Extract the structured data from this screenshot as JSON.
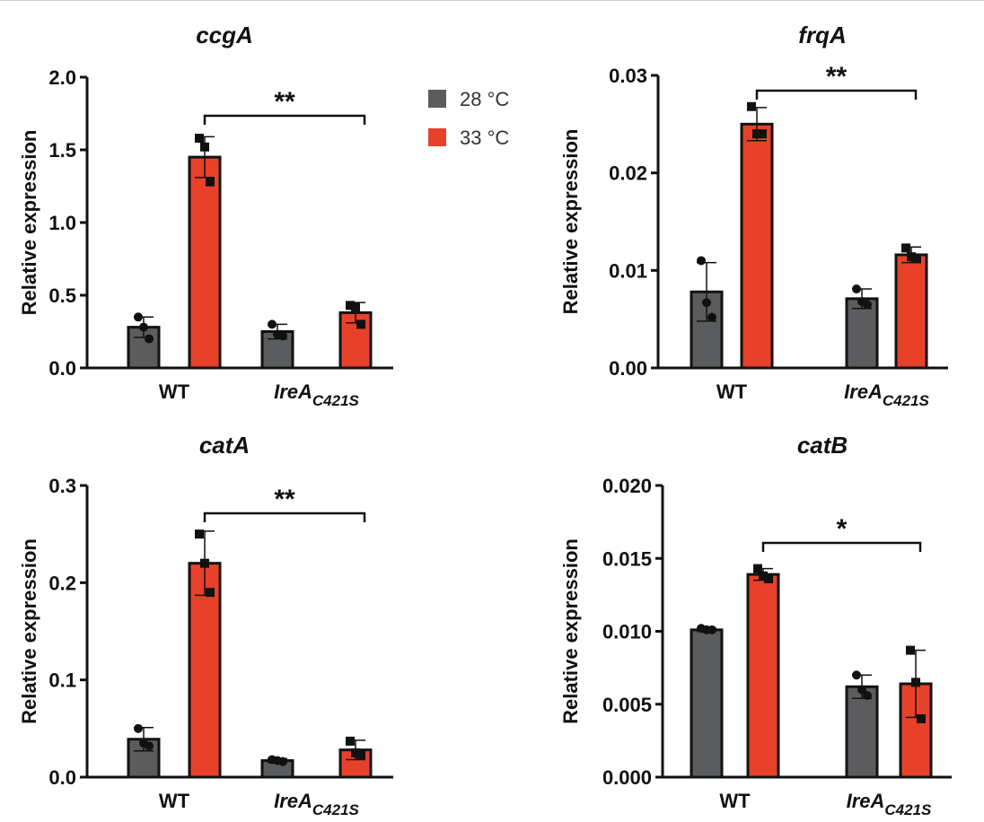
{
  "colors": {
    "28C": "#5b5c5e",
    "33C": "#e8412a",
    "stroke": "#111111"
  },
  "legend": {
    "items": [
      {
        "label": "28 °C",
        "color": "#5b5c5e"
      },
      {
        "label": "33 °C",
        "color": "#e8412a"
      }
    ]
  },
  "chart_data": [
    {
      "type": "bar",
      "title": "ccgA",
      "ylabel": "Relative expression",
      "xlabel": "",
      "ylim": [
        0,
        2.0
      ],
      "yticks": [
        "0.0",
        "0.5",
        "1.0",
        "1.5",
        "2.0"
      ],
      "ytick_values": [
        0,
        0.5,
        1.0,
        1.5,
        2.0
      ],
      "categories": [
        {
          "main": "WT",
          "sub": ""
        },
        {
          "main": "IreA",
          "sub": "C421S"
        }
      ],
      "series": [
        {
          "name": "28 °C",
          "values": [
            0.28,
            0.25
          ],
          "errors": [
            0.07,
            0.05
          ],
          "points": [
            [
              0.35,
              0.28,
              0.2
            ],
            [
              0.3,
              0.23,
              0.22
            ]
          ]
        },
        {
          "name": "33 °C",
          "values": [
            1.45,
            0.38
          ],
          "errors": [
            0.14,
            0.07
          ],
          "points": [
            [
              1.58,
              1.52,
              1.28
            ],
            [
              0.43,
              0.42,
              0.3
            ]
          ]
        }
      ],
      "significance": {
        "label": "**",
        "from": "WT 33 °C",
        "to": "IreA C421S 33 °C"
      }
    },
    {
      "type": "bar",
      "title": "frqA",
      "ylabel": "Relative expression",
      "xlabel": "",
      "ylim": [
        0,
        0.03
      ],
      "yticks": [
        "0.00",
        "0.01",
        "0.02",
        "0.03"
      ],
      "ytick_values": [
        0,
        0.01,
        0.02,
        0.03
      ],
      "categories": [
        {
          "main": "WT",
          "sub": ""
        },
        {
          "main": "IreA",
          "sub": "C421S"
        }
      ],
      "series": [
        {
          "name": "28 °C",
          "values": [
            0.0078,
            0.0071
          ],
          "errors": [
            0.003,
            0.001
          ],
          "points": [
            [
              0.011,
              0.0067,
              0.0052
            ],
            [
              0.0081,
              0.0068,
              0.0065
            ]
          ]
        },
        {
          "name": "33 °C",
          "values": [
            0.025,
            0.0116
          ],
          "errors": [
            0.0017,
            0.0008
          ],
          "points": [
            [
              0.0268,
              0.024,
              0.024
            ],
            [
              0.0123,
              0.0114,
              0.0112
            ]
          ]
        }
      ],
      "significance": {
        "label": "**",
        "from": "WT 33 °C",
        "to": "IreA C421S 33 °C"
      }
    },
    {
      "type": "bar",
      "title": "catA",
      "ylabel": "Relative expression",
      "xlabel": "",
      "ylim": [
        0,
        0.3
      ],
      "yticks": [
        "0.0",
        "0.1",
        "0.2",
        "0.3"
      ],
      "ytick_values": [
        0,
        0.1,
        0.2,
        0.3
      ],
      "categories": [
        {
          "main": "WT",
          "sub": ""
        },
        {
          "main": "IreA",
          "sub": "C421S"
        }
      ],
      "series": [
        {
          "name": "28 °C",
          "values": [
            0.039,
            0.017
          ],
          "errors": [
            0.012,
            0.002
          ],
          "points": [
            [
              0.05,
              0.035,
              0.032
            ],
            [
              0.018,
              0.017,
              0.016
            ]
          ]
        },
        {
          "name": "33 °C",
          "values": [
            0.22,
            0.028
          ],
          "errors": [
            0.033,
            0.01
          ],
          "points": [
            [
              0.25,
              0.22,
              0.19
            ],
            [
              0.037,
              0.025,
              0.023
            ]
          ]
        }
      ],
      "significance": {
        "label": "**",
        "from": "WT 33 °C",
        "to": "IreA C421S 33 °C"
      }
    },
    {
      "type": "bar",
      "title": "catB",
      "ylabel": "Relative expression",
      "xlabel": "",
      "ylim": [
        0,
        0.02
      ],
      "yticks": [
        "0.000",
        "0.005",
        "0.010",
        "0.015",
        "0.020"
      ],
      "ytick_values": [
        0,
        0.005,
        0.01,
        0.015,
        0.02
      ],
      "categories": [
        {
          "main": "WT",
          "sub": ""
        },
        {
          "main": "IreA",
          "sub": "C421S"
        }
      ],
      "series": [
        {
          "name": "28 °C",
          "values": [
            0.0101,
            0.0062
          ],
          "errors": [
            0.0001,
            0.0008
          ],
          "points": [
            [
              0.0102,
              0.0101,
              0.0101
            ],
            [
              0.007,
              0.006,
              0.0056
            ]
          ]
        },
        {
          "name": "33 °C",
          "values": [
            0.0139,
            0.0064
          ],
          "errors": [
            0.0004,
            0.0023
          ],
          "points": [
            [
              0.0143,
              0.0138,
              0.0136
            ],
            [
              0.0087,
              0.0065,
              0.004
            ]
          ]
        }
      ],
      "significance": {
        "label": "*",
        "from": "WT 33 °C",
        "to": "IreA C421S 33 °C"
      }
    }
  ]
}
